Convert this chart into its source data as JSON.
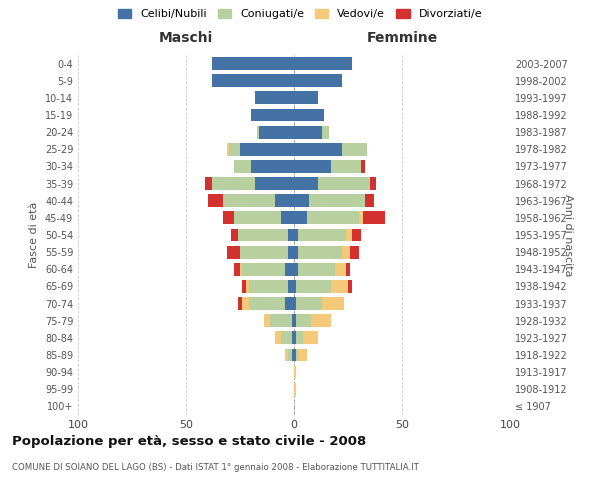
{
  "age_groups": [
    "100+",
    "95-99",
    "90-94",
    "85-89",
    "80-84",
    "75-79",
    "70-74",
    "65-69",
    "60-64",
    "55-59",
    "50-54",
    "45-49",
    "40-44",
    "35-39",
    "30-34",
    "25-29",
    "20-24",
    "15-19",
    "10-14",
    "5-9",
    "0-4"
  ],
  "birth_years": [
    "≤ 1907",
    "1908-1912",
    "1913-1917",
    "1918-1922",
    "1923-1927",
    "1928-1932",
    "1933-1937",
    "1938-1942",
    "1943-1947",
    "1948-1952",
    "1953-1957",
    "1958-1962",
    "1963-1967",
    "1968-1972",
    "1973-1977",
    "1978-1982",
    "1983-1987",
    "1988-1992",
    "1993-1997",
    "1998-2002",
    "2003-2007"
  ],
  "m_celibe": [
    0,
    0,
    0,
    1,
    1,
    1,
    4,
    3,
    4,
    3,
    3,
    6,
    9,
    18,
    20,
    25,
    16,
    20,
    18,
    38,
    38
  ],
  "m_coniugato": [
    0,
    0,
    0,
    2,
    5,
    10,
    17,
    18,
    20,
    22,
    23,
    22,
    24,
    20,
    8,
    5,
    1,
    0,
    0,
    0,
    0
  ],
  "m_vedovo": [
    0,
    0,
    0,
    1,
    3,
    3,
    3,
    1,
    1,
    0,
    0,
    0,
    0,
    0,
    0,
    1,
    0,
    0,
    0,
    0,
    0
  ],
  "m_divorziato": [
    0,
    0,
    0,
    0,
    0,
    0,
    2,
    2,
    3,
    6,
    3,
    5,
    7,
    3,
    0,
    0,
    0,
    0,
    0,
    0,
    0
  ],
  "f_nubile": [
    0,
    0,
    0,
    1,
    1,
    1,
    1,
    1,
    2,
    2,
    2,
    6,
    7,
    11,
    17,
    22,
    13,
    14,
    11,
    22,
    27
  ],
  "f_coniugata": [
    0,
    0,
    0,
    1,
    3,
    7,
    12,
    16,
    17,
    20,
    22,
    24,
    26,
    24,
    14,
    12,
    3,
    0,
    0,
    0,
    0
  ],
  "f_vedova": [
    0,
    1,
    1,
    4,
    7,
    9,
    10,
    8,
    5,
    4,
    3,
    2,
    0,
    0,
    0,
    0,
    0,
    0,
    0,
    0,
    0
  ],
  "f_divorziata": [
    0,
    0,
    0,
    0,
    0,
    0,
    0,
    2,
    2,
    4,
    4,
    10,
    4,
    3,
    2,
    0,
    0,
    0,
    0,
    0,
    0
  ],
  "color_celibe": "#4472a4",
  "color_coniugato": "#b8cfa0",
  "color_vedovo": "#f5c97a",
  "color_divorziato": "#d33030",
  "title": "Popolazione per età, sesso e stato civile - 2008",
  "subtitle": "COMUNE DI SOIANO DEL LAGO (BS) - Dati ISTAT 1° gennaio 2008 - Elaborazione TUTTITALIA.IT",
  "xlabel_left": "Maschi",
  "xlabel_right": "Femmine",
  "ylabel_left": "Fasce di età",
  "ylabel_right": "Anni di nascita",
  "xlim": 100,
  "legend_labels": [
    "Celibi/Nubili",
    "Coniugati/e",
    "Vedovi/e",
    "Divorziati/e"
  ],
  "background_color": "#ffffff",
  "grid_color": "#cccccc"
}
